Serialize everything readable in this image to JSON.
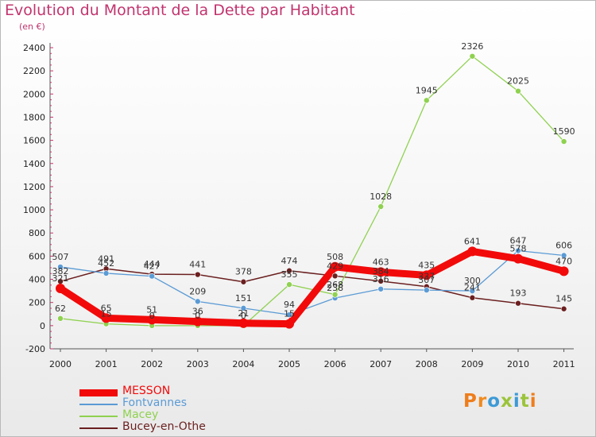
{
  "title": "Evolution du Montant de la Dette par Habitant",
  "unit_label": "(en €)",
  "logo": {
    "text": "Proxiti",
    "letter_colors": [
      "#ef7d1b",
      "#f08a1f",
      "#3d9ad6",
      "#9bc43a",
      "#3d9ad6",
      "#9bc43a",
      "#ef7d1b"
    ]
  },
  "chart_data": {
    "type": "line",
    "x": [
      "2000",
      "2001",
      "2002",
      "2003",
      "2004",
      "2005",
      "2006",
      "2007",
      "2008",
      "2009",
      "2010",
      "2011"
    ],
    "ylim": [
      -200,
      2400
    ],
    "yticks": [
      "-200",
      "0",
      "200",
      "400",
      "600",
      "800",
      "1000",
      "1200",
      "1400",
      "1600",
      "1800",
      "2000",
      "2200",
      "2400"
    ],
    "grid": false,
    "legend_position": "bottom-left",
    "series": [
      {
        "name": "MESSON",
        "color": "#f20a0a",
        "values": [
          321,
          65,
          51,
          36,
          21,
          15,
          508,
          463,
          435,
          641,
          578,
          470
        ],
        "labels": [
          "321",
          "65",
          "51",
          "36",
          "21",
          "15",
          "508",
          "463",
          "435",
          "641",
          "578",
          "470"
        ]
      },
      {
        "name": "Fontvannes",
        "color": "#5b9bd5",
        "values": [
          507,
          452,
          427,
          209,
          151,
          94,
          238,
          316,
          307,
          300,
          647,
          606
        ],
        "labels": [
          "507",
          "452",
          "427",
          "209",
          "151",
          "94",
          "238",
          "316",
          "307",
          "300",
          "647",
          "606"
        ]
      },
      {
        "name": "Macey",
        "color": "#8fd150",
        "values": [
          62,
          15,
          0,
          0,
          0,
          355,
          268,
          1028,
          1945,
          2326,
          2025,
          1590
        ],
        "labels": [
          "62",
          "15",
          "0",
          "0",
          "0",
          "355",
          "268",
          "1028",
          "1945",
          "2326",
          "2025",
          "1590"
        ]
      },
      {
        "name": "Bucey-en-Othe",
        "color": "#6b1f1f",
        "values": [
          382,
          491,
          444,
          441,
          378,
          474,
          429,
          384,
          337,
          241,
          193,
          145
        ],
        "labels": [
          "382",
          "491",
          "444",
          "441",
          "378",
          "474",
          "429",
          "384",
          "337",
          "241",
          "193",
          "145"
        ]
      }
    ]
  }
}
